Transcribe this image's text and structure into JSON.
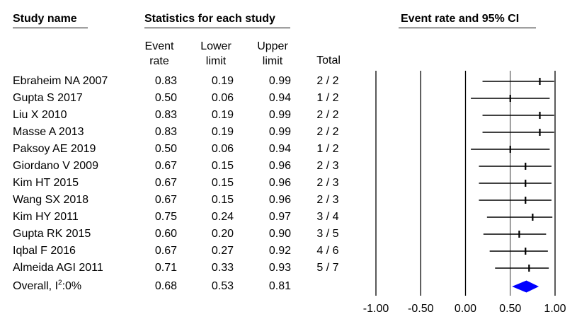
{
  "headers": {
    "study_name": "Study name",
    "statistics": "Statistics for each study",
    "event_rate_ci": "Event rate and 95% CI"
  },
  "columns": {
    "event_rate": [
      "Event",
      "rate"
    ],
    "lower_limit": [
      "Lower",
      "limit"
    ],
    "upper_limit": [
      "Upper",
      "limit"
    ],
    "total": "Total"
  },
  "overall_label": "Overall, I",
  "overall_sup": "2",
  "overall_suffix": ":0%",
  "chart_data": {
    "type": "forest",
    "x_ticks": [
      "-1.00",
      "-0.50",
      "0.00",
      "0.50",
      "1.00"
    ],
    "xlim": [
      -1.0,
      1.0
    ],
    "reference_lines": [
      -1.0,
      -0.5,
      0.0,
      0.5
    ],
    "studies": [
      {
        "name": "Ebraheim NA 2007",
        "rate": "0.83",
        "lower": "0.19",
        "upper": "0.99",
        "total": "2 / 2"
      },
      {
        "name": "Gupta S 2017",
        "rate": "0.50",
        "lower": "0.06",
        "upper": "0.94",
        "total": "1 / 2"
      },
      {
        "name": "Liu X 2010",
        "rate": "0.83",
        "lower": "0.19",
        "upper": "0.99",
        "total": "2 / 2"
      },
      {
        "name": "Masse A 2013",
        "rate": "0.83",
        "lower": "0.19",
        "upper": "0.99",
        "total": "2 / 2"
      },
      {
        "name": "Paksoy AE 2019",
        "rate": "0.50",
        "lower": "0.06",
        "upper": "0.94",
        "total": "1 / 2"
      },
      {
        "name": "Giordano V 2009",
        "rate": "0.67",
        "lower": "0.15",
        "upper": "0.96",
        "total": "2 / 3"
      },
      {
        "name": "Kim HT 2015",
        "rate": "0.67",
        "lower": "0.15",
        "upper": "0.96",
        "total": "2 / 3"
      },
      {
        "name": "Wang SX 2018",
        "rate": "0.67",
        "lower": "0.15",
        "upper": "0.96",
        "total": "2 / 3"
      },
      {
        "name": "Kim HY 2011",
        "rate": "0.75",
        "lower": "0.24",
        "upper": "0.97",
        "total": "3 / 4"
      },
      {
        "name": "Gupta RK 2015",
        "rate": "0.60",
        "lower": "0.20",
        "upper": "0.90",
        "total": "3 / 5"
      },
      {
        "name": "Iqbal F 2016",
        "rate": "0.67",
        "lower": "0.27",
        "upper": "0.92",
        "total": "4 / 6"
      },
      {
        "name": "Almeida AGI 2011",
        "rate": "0.71",
        "lower": "0.33",
        "upper": "0.93",
        "total": "5 / 7"
      }
    ],
    "overall": {
      "rate": "0.68",
      "lower": "0.53",
      "upper": "0.81"
    },
    "overall_color": "#0000ff"
  }
}
